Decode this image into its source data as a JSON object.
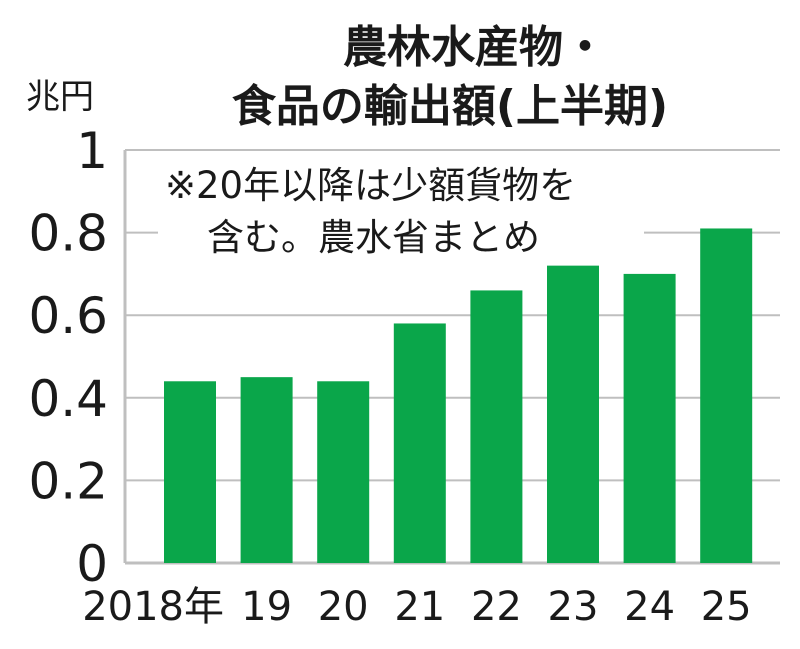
{
  "chart_data": {
    "type": "bar",
    "title": [
      "農林水産物・",
      "食品の輸出額(上半期)"
    ],
    "unit_label": "兆円",
    "note": [
      "※20年以降は少額貨物を",
      "含む。農水省まとめ"
    ],
    "categories": [
      "2018年",
      "19",
      "20",
      "21",
      "22",
      "23",
      "24",
      "25"
    ],
    "values": [
      0.44,
      0.45,
      0.44,
      0.58,
      0.66,
      0.72,
      0.7,
      0.81
    ],
    "y_ticks": [
      "0",
      "0.2",
      "0.4",
      "0.6",
      "0.8",
      "1"
    ],
    "ylim": [
      0,
      1
    ],
    "grid": true,
    "bar_color": "#0aa64a",
    "grid_color": "#bfbfbf"
  }
}
